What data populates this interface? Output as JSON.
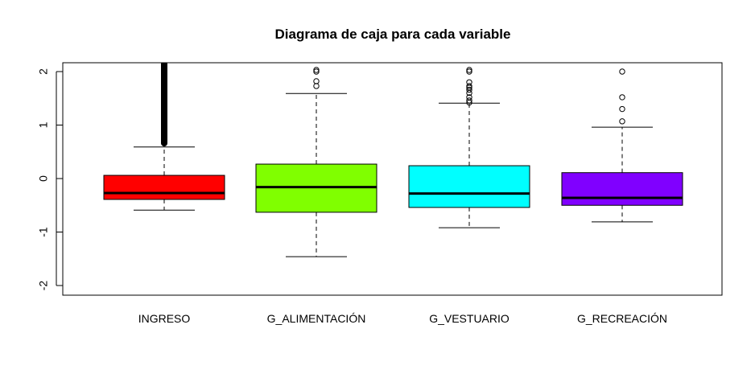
{
  "chart_data": {
    "type": "boxplot",
    "title": "Diagrama de caja para cada variable",
    "xlabel": "",
    "ylabel": "",
    "ylim": [
      -2.2,
      2.2
    ],
    "yticks": [
      -2,
      -1,
      0,
      1,
      2
    ],
    "ytick_labels": [
      "-2",
      "-1",
      "0",
      "1",
      "2"
    ],
    "grid": false,
    "legend": null,
    "categories": [
      "INGRESO",
      "G_ALIMENTACIÓN",
      "G_VESTUARIO",
      "G_RECREACIÓN"
    ],
    "series": [
      {
        "name": "INGRESO",
        "color": "#ff0000",
        "whisker_low": -0.59,
        "q1": -0.39,
        "median": -0.27,
        "q3": 0.06,
        "whisker_high": 0.59,
        "outliers_dense_range": [
          0.6,
          2.2
        ],
        "outliers": [
          0.62,
          0.7,
          0.8,
          0.9,
          1.0,
          1.1,
          1.2,
          1.3,
          1.4,
          1.5,
          1.6,
          1.7,
          1.75,
          1.8,
          1.9,
          2.0,
          2.1,
          2.2
        ]
      },
      {
        "name": "G_ALIMENTACIÓN",
        "color": "#80ff00",
        "whisker_low": -1.46,
        "q1": -0.63,
        "median": -0.16,
        "q3": 0.27,
        "whisker_high": 1.59,
        "outliers": [
          1.73,
          1.82,
          2.0,
          2.03
        ]
      },
      {
        "name": "G_VESTUARIO",
        "color": "#00ffff",
        "whisker_low": -0.92,
        "q1": -0.54,
        "median": -0.28,
        "q3": 0.24,
        "whisker_high": 1.41,
        "outliers": [
          1.42,
          1.46,
          1.52,
          1.6,
          1.66,
          1.7,
          1.73,
          1.8,
          2.0,
          2.03
        ]
      },
      {
        "name": "G_RECREACIÓN",
        "color": "#8000ff",
        "whisker_low": -0.81,
        "q1": -0.5,
        "median": -0.36,
        "q3": 0.11,
        "whisker_high": 0.96,
        "outliers": [
          1.07,
          1.3,
          1.52,
          2.0
        ]
      }
    ]
  }
}
